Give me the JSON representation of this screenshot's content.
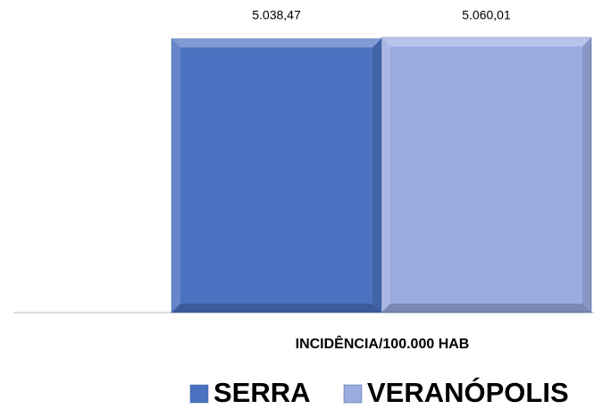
{
  "chart_data": {
    "type": "bar",
    "categories": [
      "INCIDÊNCIA/100.000 HAB"
    ],
    "series": [
      {
        "name": "SERRA",
        "color": "#4a72c0",
        "values": [
          5038.47
        ],
        "value_labels": [
          "5.038,47"
        ]
      },
      {
        "name": "VERANÓPOLIS",
        "color": "#9aabe0",
        "values": [
          5060.01
        ],
        "value_labels": [
          "5.060,01"
        ]
      }
    ],
    "legend": "bottom-right"
  }
}
